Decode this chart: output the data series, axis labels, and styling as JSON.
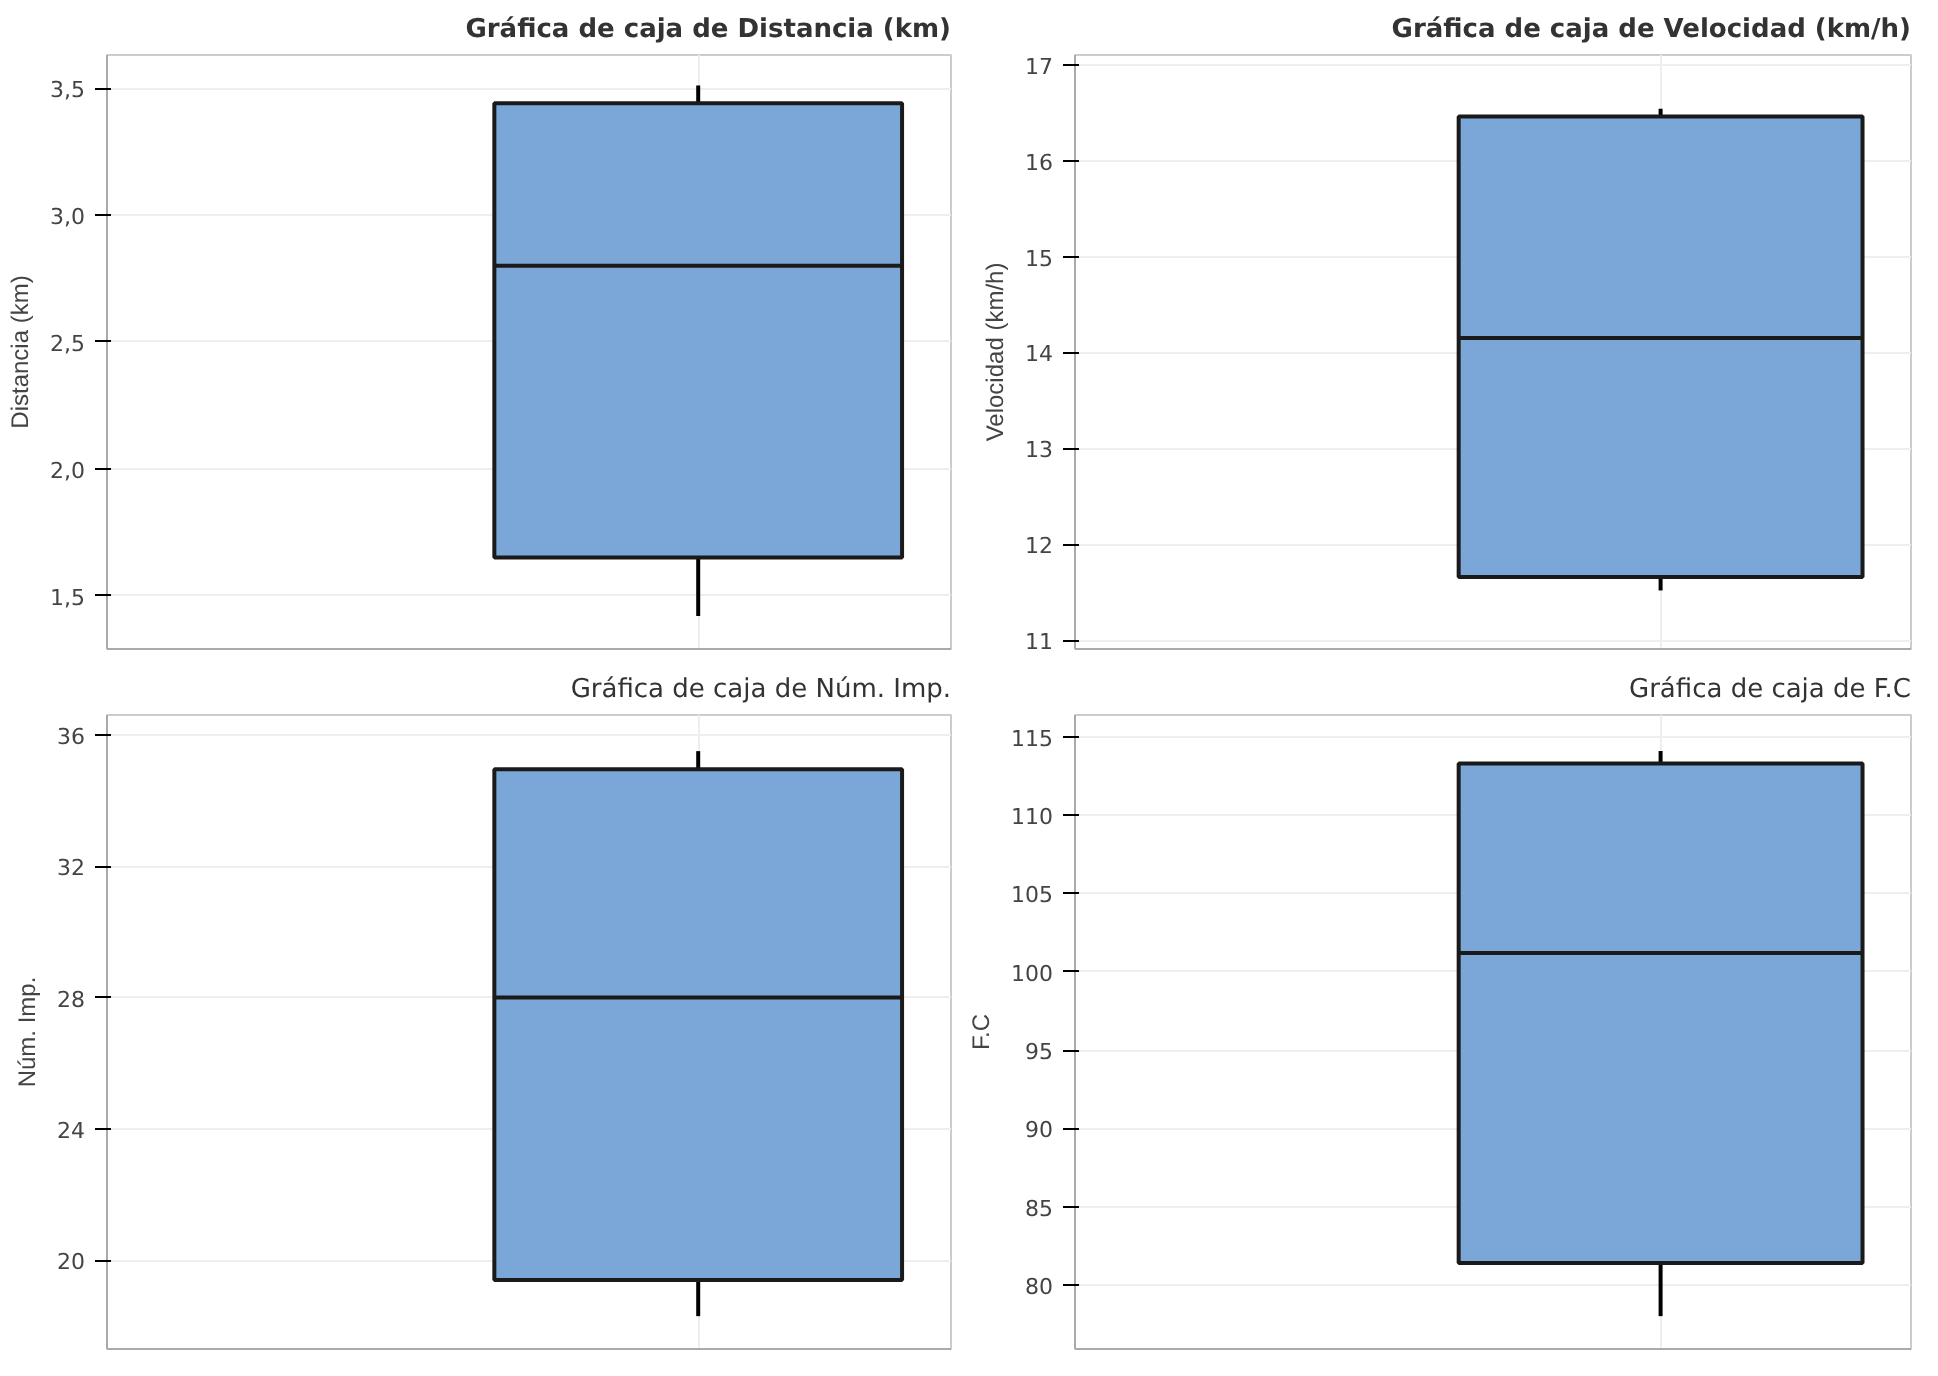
{
  "chart_data": [
    {
      "type": "box",
      "title": "Gráfica de caja de Distancia (km)",
      "ylabel": "Distancia (km)",
      "categories": [
        null
      ],
      "color": "#7ba6d8",
      "boxes": [
        {
          "low": 1.42,
          "q1": 1.65,
          "median": 2.8,
          "q3": 3.44,
          "high": 3.51
        }
      ],
      "ylim": [
        1.29,
        3.63
      ],
      "yticks": [
        {
          "value": 1.5,
          "label": "1,5"
        },
        {
          "value": 2.0,
          "label": "2,0"
        },
        {
          "value": 2.5,
          "label": "2,5"
        },
        {
          "value": 3.0,
          "label": "3,0"
        },
        {
          "value": 3.5,
          "label": "3,5"
        }
      ],
      "grid": true
    },
    {
      "type": "box",
      "title": "Gráfica de caja de Velocidad (km/h)",
      "ylabel": "Velocidad (km/h)",
      "categories": [
        null
      ],
      "color": "#7ba6d8",
      "boxes": [
        {
          "low": 11.52,
          "q1": 11.66,
          "median": 14.15,
          "q3": 16.46,
          "high": 16.54
        }
      ],
      "ylim": [
        10.91,
        17.1
      ],
      "yticks": [
        11,
        12,
        13,
        14,
        15,
        16,
        17
      ],
      "grid": true
    },
    {
      "type": "box",
      "title": "Gráfica de caja de Núm. Imp.",
      "ylabel": "Núm. Imp.",
      "categories": [
        null
      ],
      "color": "#7ba6d8",
      "boxes": [
        {
          "low": 18.3,
          "q1": 19.4,
          "median": 28.0,
          "q3": 34.95,
          "high": 35.5
        }
      ],
      "ylim": [
        17.3,
        36.6
      ],
      "yticks": [
        20,
        24,
        28,
        32,
        36
      ],
      "grid": true
    },
    {
      "type": "box",
      "title": "Gráfica de caja de F.C",
      "ylabel": "F.C",
      "categories": [
        null
      ],
      "color": "#7ba6d8",
      "boxes": [
        {
          "low": 78.0,
          "q1": 81.4,
          "median": 101.2,
          "q3": 113.3,
          "high": 114.1
        }
      ],
      "ylim": [
        75.9,
        116.4
      ],
      "yticks": [
        80,
        85,
        90,
        95,
        100,
        105,
        110,
        115
      ],
      "grid": true
    }
  ]
}
